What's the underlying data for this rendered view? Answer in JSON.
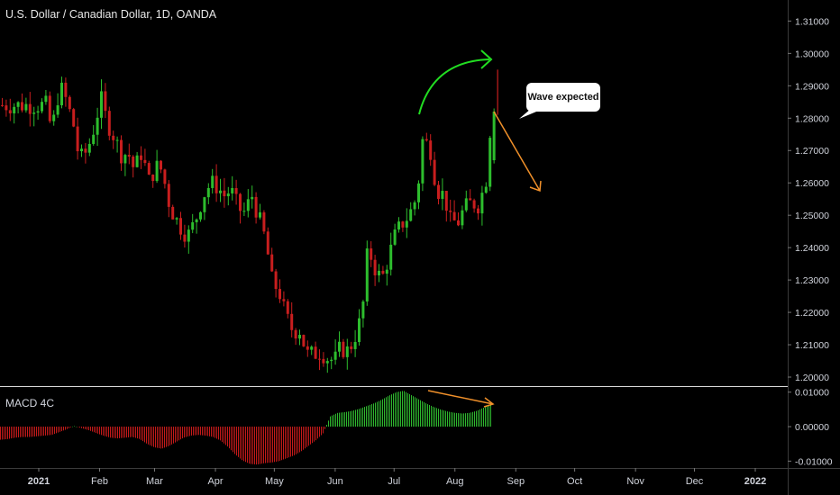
{
  "header": {
    "title": "U.S. Dollar / Canadian Dollar, 1D, OANDA"
  },
  "indicator": {
    "label": "MACD 4C"
  },
  "annotation": {
    "callout_text": "Wave expected"
  },
  "colors": {
    "background": "#000000",
    "bull": "#2dbd2d",
    "bear": "#c81e1e",
    "macd_pos": "#2eb82e",
    "macd_neg": "#c41a1a",
    "arrow_green": "#22dd22",
    "arrow_orange": "#f0902a",
    "axis_text": "#d1d4dc",
    "divider": "#d9d9d9"
  },
  "chart_data": [
    {
      "type": "candlestick",
      "title": "U.S. Dollar / Canadian Dollar, 1D, OANDA",
      "price_axis": {
        "ticks": [
          "1.31000",
          "1.30000",
          "1.29000",
          "1.28000",
          "1.27000",
          "1.26000",
          "1.25000",
          "1.24000",
          "1.23000",
          "1.22000",
          "1.21000",
          "1.20000"
        ],
        "ylim": [
          1.1975,
          1.3165
        ]
      },
      "time_axis": {
        "ticks": [
          "2021",
          "Feb",
          "Mar",
          "Apr",
          "May",
          "Jun",
          "Jul",
          "Aug",
          "Sep",
          "Oct",
          "Nov",
          "Dec",
          "2022"
        ]
      },
      "close_series": [
        [
          "2021-01-04",
          1.284
        ],
        [
          "2021-01-07",
          1.276
        ],
        [
          "2021-01-11",
          1.29
        ],
        [
          "2021-01-14",
          1.286
        ],
        [
          "2021-01-18",
          1.278
        ],
        [
          "2021-01-21",
          1.267
        ],
        [
          "2021-01-25",
          1.27
        ],
        [
          "2021-01-28",
          1.276
        ],
        [
          "2021-02-01",
          1.286
        ],
        [
          "2021-02-04",
          1.279
        ],
        [
          "2021-02-08",
          1.274
        ],
        [
          "2021-02-11",
          1.269
        ],
        [
          "2021-02-15",
          1.269
        ],
        [
          "2021-02-18",
          1.264
        ],
        [
          "2021-02-22",
          1.27
        ],
        [
          "2021-02-25",
          1.26
        ],
        [
          "2021-03-01",
          1.265
        ],
        [
          "2021-03-04",
          1.264
        ],
        [
          "2021-03-08",
          1.253
        ],
        [
          "2021-03-11",
          1.249
        ],
        [
          "2021-03-15",
          1.245
        ],
        [
          "2021-03-18",
          1.244
        ],
        [
          "2021-03-22",
          1.25
        ],
        [
          "2021-03-25",
          1.256
        ],
        [
          "2021-03-29",
          1.26
        ],
        [
          "2021-04-01",
          1.259
        ],
        [
          "2021-04-05",
          1.256
        ],
        [
          "2021-04-08",
          1.258
        ],
        [
          "2021-04-12",
          1.252
        ],
        [
          "2021-04-15",
          1.251
        ],
        [
          "2021-04-19",
          1.256
        ],
        [
          "2021-04-22",
          1.25
        ],
        [
          "2021-04-26",
          1.242
        ],
        [
          "2021-04-29",
          1.23
        ],
        [
          "2021-05-03",
          1.226
        ],
        [
          "2021-05-06",
          1.219
        ],
        [
          "2021-05-10",
          1.214
        ],
        [
          "2021-05-13",
          1.215
        ],
        [
          "2021-05-17",
          1.207
        ],
        [
          "2021-05-20",
          1.207
        ],
        [
          "2021-05-24",
          1.208
        ],
        [
          "2021-05-27",
          1.206
        ],
        [
          "2021-05-31",
          1.205
        ],
        [
          "2021-06-03",
          1.209
        ],
        [
          "2021-06-07",
          1.208
        ],
        [
          "2021-06-10",
          1.212
        ],
        [
          "2021-06-14",
          1.219
        ],
        [
          "2021-06-17",
          1.24
        ],
        [
          "2021-06-21",
          1.233
        ],
        [
          "2021-06-24",
          1.23
        ],
        [
          "2021-06-28",
          1.238
        ],
        [
          "2021-07-01",
          1.244
        ],
        [
          "2021-07-05",
          1.248
        ],
        [
          "2021-07-08",
          1.25
        ],
        [
          "2021-07-12",
          1.256
        ],
        [
          "2021-07-15",
          1.274
        ],
        [
          "2021-07-19",
          1.27
        ],
        [
          "2021-07-22",
          1.258
        ],
        [
          "2021-07-26",
          1.256
        ],
        [
          "2021-07-29",
          1.248
        ],
        [
          "2021-08-02",
          1.248
        ],
        [
          "2021-08-05",
          1.252
        ],
        [
          "2021-08-09",
          1.254
        ],
        [
          "2021-08-12",
          1.253
        ],
        [
          "2021-08-16",
          1.26
        ],
        [
          "2021-08-19",
          1.282
        ],
        [
          "2021-08-20",
          1.28
        ]
      ]
    },
    {
      "type": "bar",
      "title": "MACD 4C",
      "axis_ticks": [
        "0.01000",
        "0.00000",
        "-0.01000"
      ],
      "ylim": [
        -0.012,
        0.0115
      ],
      "values": [
        -0.0038,
        -0.0036,
        -0.0032,
        -0.003,
        -0.003,
        -0.0028,
        -0.0026,
        -0.0024,
        -0.0016,
        -0.0008,
        0.0002,
        -0.0004,
        -0.001,
        -0.0018,
        -0.0026,
        -0.0032,
        -0.0034,
        -0.0032,
        -0.003,
        -0.0036,
        -0.005,
        -0.006,
        -0.0064,
        -0.0056,
        -0.0044,
        -0.0032,
        -0.0026,
        -0.0024,
        -0.0026,
        -0.003,
        -0.004,
        -0.0058,
        -0.008,
        -0.0098,
        -0.0108,
        -0.011,
        -0.0106,
        -0.0104,
        -0.01,
        -0.0092,
        -0.0084,
        -0.0072,
        -0.0056,
        -0.004,
        -0.002,
        0.003,
        0.004,
        0.0042,
        0.0046,
        0.0052,
        0.006,
        0.0068,
        0.0078,
        0.009,
        0.01,
        0.0104,
        0.0092,
        0.008,
        0.0068,
        0.0058,
        0.005,
        0.0044,
        0.004,
        0.0038,
        0.004,
        0.0046,
        0.0056,
        0.0064
      ]
    }
  ]
}
